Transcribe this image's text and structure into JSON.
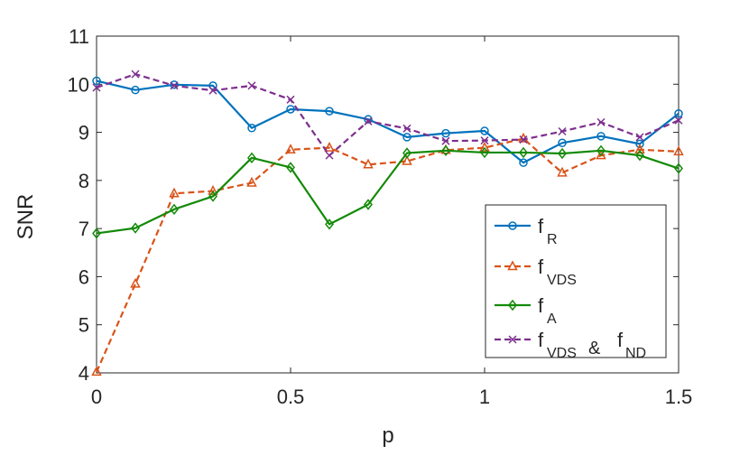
{
  "chart_data": {
    "type": "line",
    "title": "",
    "xlabel": "p",
    "ylabel": "SNR",
    "xlim": [
      0,
      1.5
    ],
    "ylim": [
      4,
      11
    ],
    "xticks": [
      0,
      0.5,
      1,
      1.5
    ],
    "xtick_labels": [
      "0",
      "0.5",
      "1",
      "1.5"
    ],
    "yticks": [
      4,
      5,
      6,
      7,
      8,
      9,
      10,
      11
    ],
    "ytick_labels": [
      "4",
      "5",
      "6",
      "7",
      "8",
      "9",
      "10",
      "11"
    ],
    "grid": false,
    "legend_position": "lower-right",
    "x": [
      0,
      0.1,
      0.2,
      0.3,
      0.4,
      0.5,
      0.6,
      0.7,
      0.8,
      0.9,
      1.0,
      1.1,
      1.2,
      1.3,
      1.4,
      1.5
    ],
    "series": [
      {
        "name": "f_R",
        "legend_main": "f",
        "legend_sub": "R",
        "color": "#0072BD",
        "dash": "solid",
        "marker": "circle",
        "values": [
          10.07,
          9.88,
          9.99,
          9.97,
          9.09,
          9.48,
          9.44,
          9.27,
          8.9,
          8.98,
          9.03,
          8.37,
          8.78,
          8.92,
          8.76,
          9.39
        ]
      },
      {
        "name": "f_VDS",
        "legend_main": "f",
        "legend_sub": "VDS",
        "color": "#D95319",
        "dash": "dashed",
        "marker": "triangle",
        "values": [
          4.02,
          5.85,
          7.73,
          7.78,
          7.95,
          8.64,
          8.68,
          8.33,
          8.4,
          8.63,
          8.68,
          8.87,
          8.16,
          8.52,
          8.64,
          8.6
        ]
      },
      {
        "name": "f_A",
        "legend_main": "f",
        "legend_sub": "A",
        "color": "#138A07",
        "dash": "solid",
        "marker": "diamond",
        "values": [
          6.9,
          7.01,
          7.4,
          7.67,
          8.47,
          8.27,
          7.09,
          7.5,
          8.57,
          8.62,
          8.58,
          8.58,
          8.56,
          8.62,
          8.52,
          8.25
        ]
      },
      {
        "name": "f_VDS & f_ND",
        "legend_main": "f",
        "legend_sub": "VDS",
        "legend_amp": "&",
        "legend_main2": "f",
        "legend_sub2": "ND",
        "color": "#7E2F8E",
        "dash": "dashed",
        "marker": "x",
        "values": [
          9.93,
          10.21,
          9.97,
          9.87,
          9.97,
          9.68,
          8.52,
          9.23,
          9.08,
          8.82,
          8.83,
          8.85,
          9.02,
          9.21,
          8.9,
          9.25
        ]
      }
    ]
  }
}
